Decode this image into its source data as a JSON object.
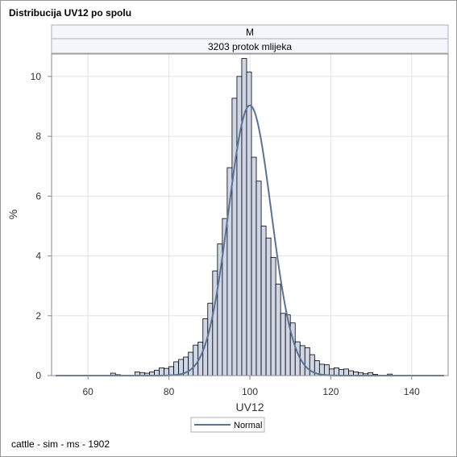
{
  "window": {
    "title": "Distribucija UV12 po spolu"
  },
  "footnote": "cattle - sim - ms - 1902",
  "colors": {
    "bar_fill": "#cfd6e6",
    "bar_stroke": "#000000",
    "curve": "#5b7395",
    "grid": "#e3e3e3",
    "strip_fill": "#f5f6fc"
  },
  "chart_data": {
    "type": "bar",
    "title": "Distribucija UV12 po spolu",
    "panel_header": "M",
    "panel_subheader": "3203 protok mlijeka",
    "xlabel": "UV12",
    "ylabel": "%",
    "xlim": [
      51,
      149
    ],
    "ylim": [
      0,
      10.75
    ],
    "x_ticks": [
      60,
      80,
      100,
      120,
      140
    ],
    "y_ticks": [
      0,
      2,
      4,
      6,
      8,
      10
    ],
    "grid": true,
    "bin_width": 1.2,
    "bins": [
      {
        "x": 66.2,
        "v": 0.08
      },
      {
        "x": 67.4,
        "v": 0.03
      },
      {
        "x": 72.2,
        "v": 0.12
      },
      {
        "x": 73.4,
        "v": 0.1
      },
      {
        "x": 74.6,
        "v": 0.08
      },
      {
        "x": 75.8,
        "v": 0.12
      },
      {
        "x": 77.0,
        "v": 0.18
      },
      {
        "x": 78.2,
        "v": 0.26
      },
      {
        "x": 79.4,
        "v": 0.24
      },
      {
        "x": 80.6,
        "v": 0.3
      },
      {
        "x": 81.8,
        "v": 0.46
      },
      {
        "x": 83.0,
        "v": 0.54
      },
      {
        "x": 84.2,
        "v": 0.62
      },
      {
        "x": 85.4,
        "v": 0.78
      },
      {
        "x": 86.6,
        "v": 1.02
      },
      {
        "x": 87.8,
        "v": 1.12
      },
      {
        "x": 89.0,
        "v": 1.9
      },
      {
        "x": 90.2,
        "v": 2.42
      },
      {
        "x": 91.4,
        "v": 3.5
      },
      {
        "x": 92.6,
        "v": 4.4
      },
      {
        "x": 93.8,
        "v": 5.25
      },
      {
        "x": 95.0,
        "v": 6.95
      },
      {
        "x": 96.2,
        "v": 9.27
      },
      {
        "x": 97.4,
        "v": 10.0
      },
      {
        "x": 98.6,
        "v": 10.6
      },
      {
        "x": 99.8,
        "v": 10.15
      },
      {
        "x": 101.0,
        "v": 7.3
      },
      {
        "x": 102.2,
        "v": 6.5
      },
      {
        "x": 103.4,
        "v": 5.0
      },
      {
        "x": 104.6,
        "v": 4.6
      },
      {
        "x": 105.8,
        "v": 3.95
      },
      {
        "x": 107.0,
        "v": 3.06
      },
      {
        "x": 108.2,
        "v": 2.08
      },
      {
        "x": 109.4,
        "v": 2.03
      },
      {
        "x": 110.6,
        "v": 1.76
      },
      {
        "x": 111.8,
        "v": 1.13
      },
      {
        "x": 113.0,
        "v": 1.0
      },
      {
        "x": 114.2,
        "v": 0.93
      },
      {
        "x": 115.4,
        "v": 0.7
      },
      {
        "x": 116.6,
        "v": 0.5
      },
      {
        "x": 117.8,
        "v": 0.38
      },
      {
        "x": 119.0,
        "v": 0.36
      },
      {
        "x": 120.2,
        "v": 0.22
      },
      {
        "x": 121.4,
        "v": 0.26
      },
      {
        "x": 122.6,
        "v": 0.2
      },
      {
        "x": 123.8,
        "v": 0.22
      },
      {
        "x": 125.0,
        "v": 0.16
      },
      {
        "x": 126.2,
        "v": 0.12
      },
      {
        "x": 127.4,
        "v": 0.1
      },
      {
        "x": 128.6,
        "v": 0.06
      },
      {
        "x": 129.8,
        "v": 0.1
      },
      {
        "x": 131.0,
        "v": 0.04
      },
      {
        "x": 134.6,
        "v": 0.05
      }
    ],
    "normal": {
      "name": "Normal",
      "mean": 100,
      "sd": 5.3
    },
    "legend": {
      "placement": "bottom-center",
      "entries": [
        "Normal"
      ]
    }
  }
}
